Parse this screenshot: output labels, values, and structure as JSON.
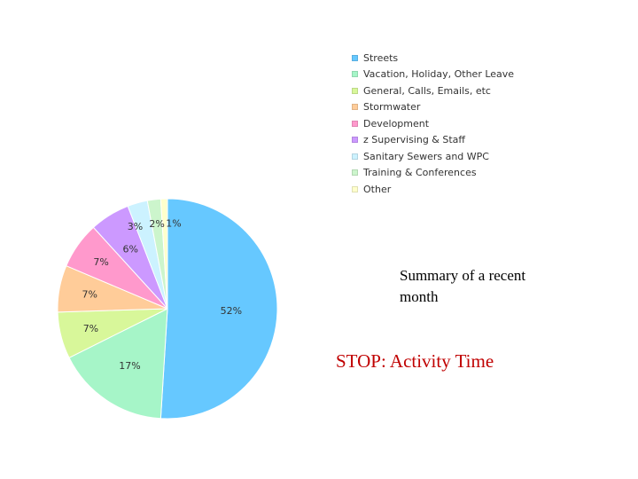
{
  "chart_data": {
    "type": "pie",
    "categories": [
      "Streets",
      "Vacation, Holiday, Other Leave",
      "General, Calls, Emails, etc",
      "Stormwater",
      "Development",
      "z Supervising & Staff",
      "Sanitary Sewers and WPC",
      "Training & Conferences",
      "Other"
    ],
    "values": [
      52,
      17,
      7,
      7,
      7,
      6,
      3,
      2,
      1
    ],
    "data_labels": [
      "52%",
      "17%",
      "7%",
      "7%",
      "7%",
      "6%",
      "3%",
      "2%",
      "1%"
    ],
    "colors": [
      "#66c8ff",
      "#a6f5c8",
      "#d8f79a",
      "#ffcc99",
      "#ff99cc",
      "#cc99ff",
      "#ccf2ff",
      "#ccf5cc",
      "#ffffcc"
    ],
    "legend_position": "top-right",
    "title": "",
    "xlabel": "",
    "ylabel": ""
  },
  "captions": {
    "summary": "Summary of a recent month",
    "stop": "STOP:  Activity Time"
  }
}
